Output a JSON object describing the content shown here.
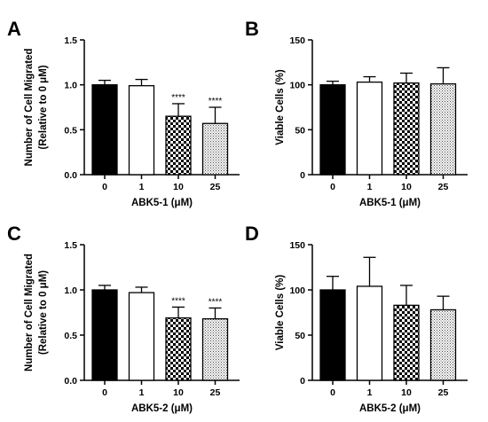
{
  "chart_data": [
    {
      "panel": "A",
      "type": "bar",
      "categories": [
        "0",
        "1",
        "10",
        "25"
      ],
      "values": [
        1.0,
        0.99,
        0.65,
        0.57
      ],
      "errors": [
        0.05,
        0.07,
        0.14,
        0.18
      ],
      "significance": [
        "",
        "",
        "****",
        "****"
      ],
      "fills": [
        "solid",
        "white",
        "checker",
        "dots"
      ],
      "ylabel_lines": [
        "Number of Cell Migrated",
        "(Relative to 0 μM)"
      ],
      "xlabel": "ABK5-1 (μM)",
      "ylim": [
        0,
        1.5
      ],
      "yticks": [
        0,
        0.5,
        1.0,
        1.5
      ],
      "ytick_labels": [
        "0.0",
        "0.5",
        "1.0",
        "1.5"
      ]
    },
    {
      "panel": "B",
      "type": "bar",
      "categories": [
        "0",
        "1",
        "10",
        "25"
      ],
      "values": [
        100,
        103,
        102,
        101
      ],
      "errors": [
        4,
        6,
        11,
        18
      ],
      "significance": [
        "",
        "",
        "",
        ""
      ],
      "fills": [
        "solid",
        "white",
        "checker",
        "dots"
      ],
      "ylabel_lines": [
        "Viable Cells (%)"
      ],
      "xlabel": "ABK5-1 (μM)",
      "ylim": [
        0,
        150
      ],
      "yticks": [
        0,
        50,
        100,
        150
      ],
      "ytick_labels": [
        "0",
        "50",
        "100",
        "150"
      ]
    },
    {
      "panel": "C",
      "type": "bar",
      "categories": [
        "0",
        "1",
        "10",
        "25"
      ],
      "values": [
        1.0,
        0.97,
        0.69,
        0.68
      ],
      "errors": [
        0.05,
        0.06,
        0.12,
        0.12
      ],
      "significance": [
        "",
        "",
        "****",
        "****"
      ],
      "fills": [
        "solid",
        "white",
        "checker",
        "dots"
      ],
      "ylabel_lines": [
        "Number of Cell Migrated",
        "(Relative to 0 μM)"
      ],
      "xlabel": "ABK5-2 (μM)",
      "ylim": [
        0,
        1.5
      ],
      "yticks": [
        0,
        0.5,
        1.0,
        1.5
      ],
      "ytick_labels": [
        "0.0",
        "0.5",
        "1.0",
        "1.5"
      ]
    },
    {
      "panel": "D",
      "type": "bar",
      "categories": [
        "0",
        "1",
        "10",
        "25"
      ],
      "values": [
        100,
        104,
        83,
        78
      ],
      "errors": [
        15,
        32,
        22,
        15
      ],
      "significance": [
        "",
        "",
        "",
        ""
      ],
      "fills": [
        "solid",
        "white",
        "checker",
        "dots"
      ],
      "ylabel_lines": [
        "Viable Cells (%)"
      ],
      "xlabel": "ABK5-2 (μM)",
      "ylim": [
        0,
        150
      ],
      "yticks": [
        0,
        50,
        100,
        150
      ],
      "ytick_labels": [
        "0",
        "50",
        "100",
        "150"
      ]
    }
  ]
}
